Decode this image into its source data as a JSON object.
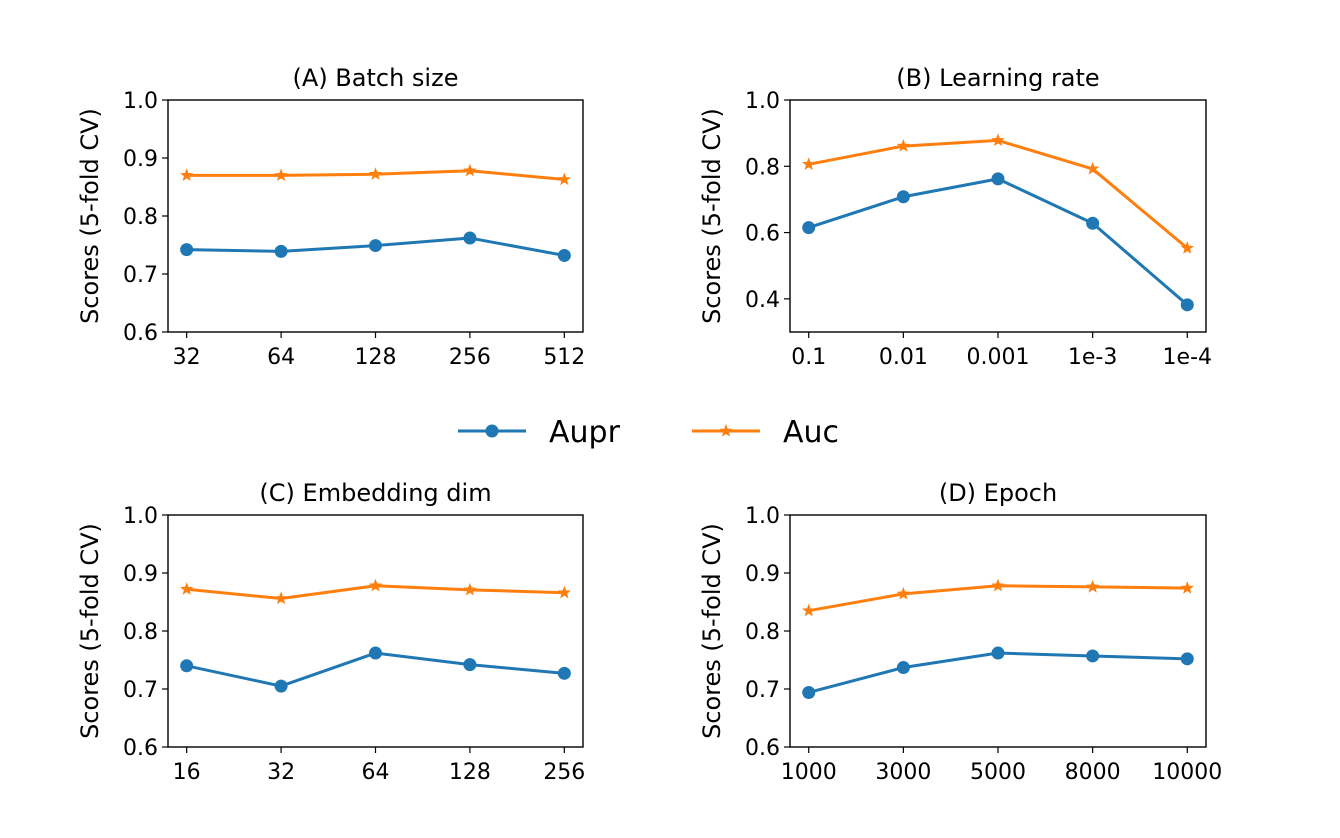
{
  "legend": [
    {
      "name": "Aupr",
      "color": "#1f77b4",
      "marker": "circle"
    },
    {
      "name": "Auc",
      "color": "#ff7f0e",
      "marker": "star"
    }
  ],
  "chart_data": [
    {
      "type": "line",
      "title": "(A) Batch size",
      "xlabel": "",
      "ylabel": "Scores (5-fold CV)",
      "categories": [
        "32",
        "64",
        "128",
        "256",
        "512"
      ],
      "ylim": [
        0.6,
        1.0
      ],
      "yticks": [
        "0.6",
        "0.7",
        "0.8",
        "0.9",
        "1.0"
      ],
      "series": [
        {
          "name": "Aupr",
          "values": [
            0.742,
            0.739,
            0.749,
            0.762,
            0.732
          ]
        },
        {
          "name": "Auc",
          "values": [
            0.87,
            0.87,
            0.872,
            0.878,
            0.863
          ]
        }
      ]
    },
    {
      "type": "line",
      "title": "(B) Learning rate",
      "xlabel": "",
      "ylabel": "Scores (5-fold CV)",
      "categories": [
        "0.1",
        "0.01",
        "0.001",
        "1e-3",
        "1e-4"
      ],
      "ylim": [
        0.3,
        1.0
      ],
      "yticks": [
        "0.4",
        "0.6",
        "0.8",
        "1.0"
      ],
      "series": [
        {
          "name": "Aupr",
          "values": [
            0.615,
            0.708,
            0.762,
            0.628,
            0.382
          ]
        },
        {
          "name": "Auc",
          "values": [
            0.806,
            0.861,
            0.878,
            0.792,
            0.553
          ]
        }
      ]
    },
    {
      "type": "line",
      "title": "(C) Embedding dim",
      "xlabel": "",
      "ylabel": "Scores (5-fold CV)",
      "categories": [
        "16",
        "32",
        "64",
        "128",
        "256"
      ],
      "ylim": [
        0.6,
        1.0
      ],
      "yticks": [
        "0.6",
        "0.7",
        "0.8",
        "0.9",
        "1.0"
      ],
      "series": [
        {
          "name": "Aupr",
          "values": [
            0.74,
            0.705,
            0.762,
            0.742,
            0.727
          ]
        },
        {
          "name": "Auc",
          "values": [
            0.872,
            0.856,
            0.878,
            0.871,
            0.866
          ]
        }
      ]
    },
    {
      "type": "line",
      "title": "(D) Epoch",
      "xlabel": "",
      "ylabel": "Scores (5-fold CV)",
      "categories": [
        "1000",
        "3000",
        "5000",
        "8000",
        "10000"
      ],
      "ylim": [
        0.6,
        1.0
      ],
      "yticks": [
        "0.6",
        "0.7",
        "0.8",
        "0.9",
        "1.0"
      ],
      "series": [
        {
          "name": "Aupr",
          "values": [
            0.694,
            0.737,
            0.762,
            0.757,
            0.752
          ]
        },
        {
          "name": "Auc",
          "values": [
            0.835,
            0.864,
            0.878,
            0.876,
            0.874
          ]
        }
      ]
    }
  ]
}
